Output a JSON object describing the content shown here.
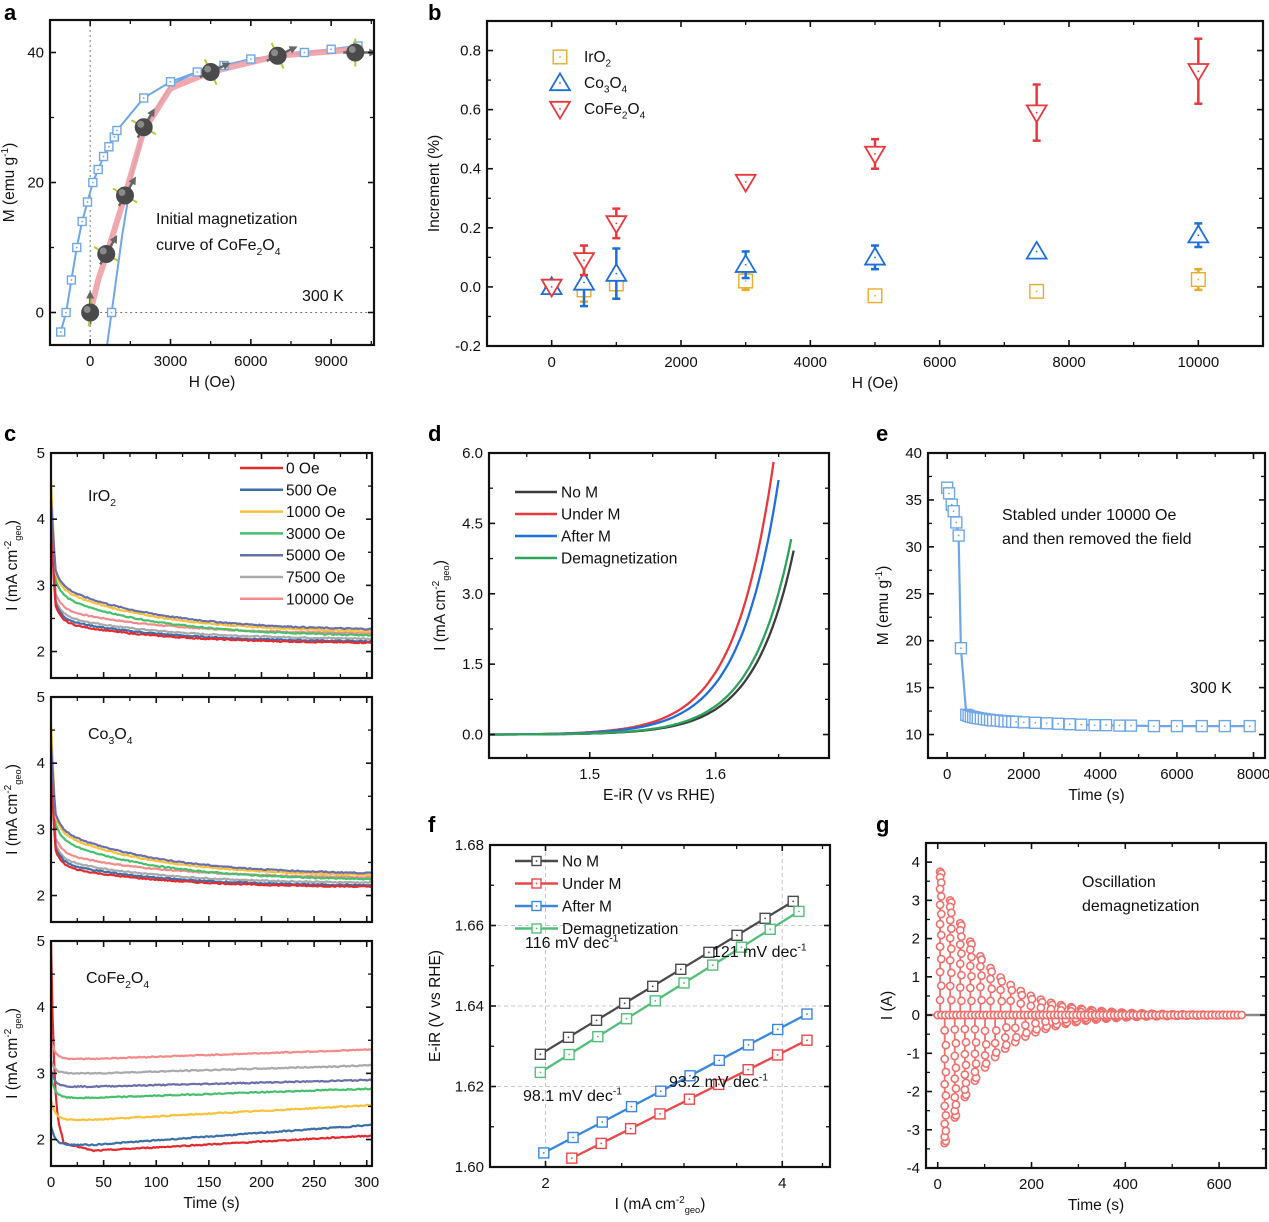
{
  "figure": {
    "panel_labels": [
      "a",
      "b",
      "c",
      "d",
      "e",
      "f",
      "g"
    ]
  },
  "chart_data": [
    {
      "id": "a",
      "type": "scatter",
      "title": "",
      "xlabel": "H (Oe)",
      "ylabel": "M (emu g⁻¹)",
      "xlim": [
        -1500,
        10600
      ],
      "ylim": [
        -5,
        45
      ],
      "xticks": [
        0,
        3000,
        6000,
        9000
      ],
      "yticks": [
        0,
        20,
        40
      ],
      "annotations": [
        "Initial magnetization",
        "curve of CoFe₂O₄",
        "300 K"
      ],
      "colors": {
        "hysteresis": "#6fa7e6",
        "initial": "#f0a0a6",
        "spin": "#5a5a5a",
        "axis_line": "#b5c93a"
      },
      "series": [
        {
          "name": "hysteresis-upper-branch",
          "marker": "open-square",
          "x": [
            -1100,
            -900,
            -700,
            -500,
            -300,
            -100,
            100,
            300,
            500,
            700,
            900,
            1000,
            2000,
            3000,
            4000,
            5000,
            6000,
            7000,
            8000,
            9000,
            10000
          ],
          "y": [
            -3,
            0,
            5,
            10,
            14,
            17,
            20,
            22,
            24,
            25.5,
            27,
            28,
            33,
            35.5,
            37,
            38,
            39,
            39.5,
            40,
            40.5,
            41
          ]
        },
        {
          "name": "hysteresis-lower-branch",
          "marker": "open-square",
          "x": [
            -1100,
            600,
            800,
            900,
            1200,
            1600,
            2000,
            3000,
            4000,
            5000,
            6000,
            7000,
            8000,
            9000,
            10000
          ],
          "y": [
            -6,
            -6,
            0,
            3,
            12,
            22,
            28,
            35,
            37,
            38,
            39,
            39.5,
            40,
            40.5,
            41
          ]
        },
        {
          "name": "initial-magnetization",
          "marker": "line",
          "x": [
            0,
            300,
            700,
            1300,
            2000,
            3000,
            4500,
            7000,
            10000
          ],
          "y": [
            0,
            5,
            10,
            18,
            28,
            34.5,
            37,
            39.5,
            40.5
          ]
        },
        {
          "name": "spin-markers",
          "marker": "sphere",
          "x": [
            0,
            600,
            1300,
            2000,
            4500,
            7000,
            9900
          ],
          "y": [
            0,
            9,
            18,
            28.5,
            37,
            39.5,
            40
          ]
        }
      ]
    },
    {
      "id": "b",
      "type": "scatter",
      "title": "",
      "xlabel": "H (Oe)",
      "ylabel": "Increment (%)",
      "xlim": [
        -1000,
        11000
      ],
      "ylim": [
        -0.2,
        0.9
      ],
      "xticks": [
        0,
        2000,
        4000,
        6000,
        8000,
        10000
      ],
      "yticks": [
        -0.2,
        0.0,
        0.2,
        0.4,
        0.6,
        0.8
      ],
      "ytick_labels": [
        "-0.2",
        "0.0",
        "0.2",
        "0.4",
        "0.6",
        "0.8"
      ],
      "legend": "top-left",
      "series": [
        {
          "name": "IrO₂",
          "color": "#e6ac2a",
          "marker": "open-square",
          "x": [
            0,
            500,
            1000,
            3000,
            5000,
            7500,
            10000
          ],
          "y": [
            0.0,
            -0.01,
            0.01,
            0.02,
            -0.03,
            -0.015,
            0.025
          ],
          "err": [
            0.01,
            0.04,
            0.05,
            0.03,
            0.02,
            0.01,
            0.035
          ]
        },
        {
          "name": "Co₃O₄",
          "color": "#1e6fd9",
          "marker": "open-triangle-up",
          "x": [
            0,
            500,
            1000,
            3000,
            5000,
            7500,
            10000
          ],
          "y": [
            0.0,
            0.015,
            0.045,
            0.075,
            0.1,
            0.12,
            0.175
          ],
          "err": [
            0.01,
            0.08,
            0.085,
            0.045,
            0.04,
            0.01,
            0.04
          ]
        },
        {
          "name": "CoFe₂O₄",
          "color": "#e8383d",
          "marker": "open-triangle-down",
          "x": [
            0,
            500,
            1000,
            3000,
            5000,
            7500,
            10000
          ],
          "y": [
            0.0,
            0.09,
            0.215,
            0.355,
            0.45,
            0.59,
            0.73
          ],
          "err": [
            0.01,
            0.05,
            0.05,
            0.01,
            0.05,
            0.095,
            0.11
          ]
        }
      ]
    },
    {
      "id": "c",
      "type": "line",
      "xlabel": "Time (s)",
      "ylabel": "I (mA cm⁻²geo)",
      "xlim": [
        0,
        305
      ],
      "ylim": [
        1.6,
        5
      ],
      "xticks": [
        0,
        50,
        100,
        150,
        200,
        250,
        300
      ],
      "yticks": [
        2,
        3,
        4,
        5
      ],
      "legend": "top-right",
      "legend_entries": [
        {
          "name": "0 Oe",
          "color": "#e32a2f"
        },
        {
          "name": "500 Oe",
          "color": "#3d6fa8"
        },
        {
          "name": "1000 Oe",
          "color": "#f7c23b"
        },
        {
          "name": "3000 Oe",
          "color": "#46c06d"
        },
        {
          "name": "5000 Oe",
          "color": "#6a6fa8"
        },
        {
          "name": "7500 Oe",
          "color": "#a9a9a9"
        },
        {
          "name": "10000 Oe",
          "color": "#f58a8a"
        }
      ],
      "subplots": [
        {
          "label": "IrO₂",
          "series": [
            {
              "name": "0 Oe",
              "start": 3.9,
              "knee": 2.45,
              "end": 2.12
            },
            {
              "name": "500 Oe",
              "start": 4.1,
              "knee": 2.5,
              "end": 2.14
            },
            {
              "name": "1000 Oe",
              "start": 4.6,
              "knee": 2.95,
              "end": 2.28
            },
            {
              "name": "3000 Oe",
              "start": 4.2,
              "knee": 2.85,
              "end": 2.22
            },
            {
              "name": "5000 Oe",
              "start": 4.3,
              "knee": 3.0,
              "end": 2.31
            },
            {
              "name": "7500 Oe",
              "start": 4.0,
              "knee": 2.55,
              "end": 2.18
            },
            {
              "name": "10000 Oe",
              "start": 4.0,
              "knee": 2.65,
              "end": 2.26
            }
          ]
        },
        {
          "label": "Co₃O₄",
          "series": [
            {
              "name": "0 Oe",
              "start": 3.9,
              "knee": 2.45,
              "end": 2.12
            },
            {
              "name": "500 Oe",
              "start": 4.1,
              "knee": 2.5,
              "end": 2.14
            },
            {
              "name": "1000 Oe",
              "start": 4.6,
              "knee": 2.95,
              "end": 2.28
            },
            {
              "name": "3000 Oe",
              "start": 4.2,
              "knee": 2.85,
              "end": 2.22
            },
            {
              "name": "5000 Oe",
              "start": 4.3,
              "knee": 3.0,
              "end": 2.31
            },
            {
              "name": "7500 Oe",
              "start": 4.0,
              "knee": 2.55,
              "end": 2.18
            },
            {
              "name": "10000 Oe",
              "start": 4.0,
              "knee": 2.65,
              "end": 2.26
            }
          ]
        },
        {
          "label": "CoFe₂O₄",
          "series": [
            {
              "name": "0 Oe",
              "start": 5.0,
              "min": 1.83,
              "end": 2.06
            },
            {
              "name": "500 Oe",
              "start": 2.2,
              "min": 1.92,
              "end": 2.22
            },
            {
              "name": "1000 Oe",
              "start": 2.6,
              "min": 2.3,
              "end": 2.52
            },
            {
              "name": "3000 Oe",
              "start": 2.95,
              "min": 2.63,
              "end": 2.77
            },
            {
              "name": "5000 Oe",
              "start": 3.05,
              "min": 2.8,
              "end": 2.9
            },
            {
              "name": "7500 Oe",
              "start": 3.2,
              "min": 3.0,
              "end": 3.12
            },
            {
              "name": "10000 Oe",
              "start": 3.5,
              "min": 3.22,
              "end": 3.36
            }
          ]
        }
      ]
    },
    {
      "id": "d",
      "type": "line",
      "xlabel": "E-iR (V vs RHE)",
      "ylabel": "I (mA cm⁻²geo)",
      "xlim": [
        1.42,
        1.69
      ],
      "ylim": [
        -0.5,
        6.0
      ],
      "xticks": [
        1.5,
        1.6
      ],
      "yticks": [
        0.0,
        1.5,
        3.0,
        4.5,
        6.0
      ],
      "ytick_labels": [
        "0.0",
        "1.5",
        "3.0",
        "4.5",
        "6.0"
      ],
      "legend": "top-left",
      "series": [
        {
          "name": "No M",
          "color": "#3c3c3c",
          "onset": 1.5,
          "x_end": 1.663,
          "y_end": 4.05
        },
        {
          "name": "Under M",
          "color": "#e6393d",
          "onset": 1.49,
          "x_end": 1.647,
          "y_end": 6.0
        },
        {
          "name": "After M",
          "color": "#1f6fd9",
          "onset": 1.49,
          "x_end": 1.651,
          "y_end": 5.6
        },
        {
          "name": "Demagnetization",
          "color": "#2ea35b",
          "onset": 1.495,
          "x_end": 1.661,
          "y_end": 4.3
        }
      ]
    },
    {
      "id": "e",
      "type": "scatter",
      "xlabel": "Time (s)",
      "ylabel": "M (emu g⁻¹)",
      "xlim": [
        -500,
        8300
      ],
      "ylim": [
        7.5,
        40
      ],
      "xticks": [
        0,
        2000,
        4000,
        6000,
        8000
      ],
      "yticks": [
        10,
        15,
        20,
        25,
        30,
        35,
        40
      ],
      "annotations": [
        "Stabled under 10000 Oe",
        "and then removed the field",
        "300 K"
      ],
      "color": "#6fa7e6",
      "series": [
        {
          "name": "M-vs-time",
          "marker": "open-square",
          "x": [
            0,
            50,
            120,
            170,
            240,
            300,
            360,
            500,
            560,
            620,
            680,
            740,
            800,
            880,
            960,
            1040,
            1120,
            1200,
            1300,
            1400,
            1500,
            1600,
            1700,
            1800,
            2000,
            2300,
            2600,
            2900,
            3200,
            3500,
            3850,
            4150,
            4500,
            4800,
            5400,
            6000,
            6650,
            7250,
            7900
          ],
          "y": [
            36.3,
            35.7,
            34.5,
            33.8,
            32.6,
            31.2,
            19.2,
            12.1,
            12.0,
            11.9,
            11.85,
            11.8,
            11.75,
            11.7,
            11.65,
            11.6,
            11.55,
            11.5,
            11.5,
            11.45,
            11.4,
            11.4,
            11.35,
            11.35,
            11.3,
            11.25,
            11.2,
            11.15,
            11.1,
            11.05,
            11.0,
            11.0,
            10.95,
            10.95,
            10.9,
            10.9,
            10.9,
            10.9,
            10.9
          ]
        }
      ]
    },
    {
      "id": "f",
      "type": "line",
      "xlabel": "I (mA cm⁻²geo)",
      "ylabel": "E-iR (V vs RHE)",
      "xscale": "log",
      "xlim": [
        1.7,
        4.6
      ],
      "ylim": [
        1.6,
        1.68
      ],
      "xticks": [
        2,
        4
      ],
      "yticks": [
        1.6,
        1.62,
        1.64,
        1.66,
        1.68
      ],
      "ytick_labels": [
        "1.60",
        "1.62",
        "1.64",
        "1.66",
        "1.68"
      ],
      "grid": true,
      "legend": "top-left",
      "series": [
        {
          "name": "No M",
          "color": "#4a4a4a",
          "marker": "open-square",
          "tafel": "116 mV dec⁻¹",
          "label_color": "#8a8a8a",
          "x_start": 1.97,
          "x_end": 4.13,
          "y_start": 1.628,
          "y_end": 1.666,
          "points": 10
        },
        {
          "name": "Under M",
          "color": "#e8484a",
          "marker": "open-square",
          "tafel": "93.2 mV dec⁻¹",
          "label_color": "#e03a3c",
          "x_start": 2.16,
          "x_end": 4.3,
          "y_start": 1.6022,
          "y_end": 1.6315,
          "points": 9
        },
        {
          "name": "After M",
          "color": "#3a86dd",
          "marker": "open-square",
          "tafel": "98.1 mV dec⁻¹",
          "label_color": "#1f6fd9",
          "x_start": 1.99,
          "x_end": 4.3,
          "y_start": 1.6035,
          "y_end": 1.638,
          "points": 10
        },
        {
          "name": "Demagnetization",
          "color": "#52bf78",
          "marker": "open-square",
          "tafel": "121 mV dec⁻¹",
          "label_color": "#2ea35b",
          "x_start": 1.97,
          "x_end": 4.2,
          "y_start": 1.6235,
          "y_end": 1.6635,
          "points": 10
        }
      ]
    },
    {
      "id": "g",
      "type": "scatter",
      "xlabel": "Time (s)",
      "ylabel": "I (A)",
      "xlim": [
        -25,
        700
      ],
      "ylim": [
        -4,
        4.5
      ],
      "xticks": [
        0,
        200,
        400,
        600
      ],
      "yticks": [
        -4,
        -3,
        -2,
        -1,
        0,
        1,
        2,
        3,
        4
      ],
      "annotations": [
        "Oscillation",
        "demagnetization"
      ],
      "color": "#ef6f6c",
      "baseline_color": "#8a8a8a",
      "series": [
        {
          "name": "oscillation-current",
          "marker": "open-circle",
          "cycle_period_s": 21.5,
          "cycle_count": 30,
          "first_positive_peak": 3.75,
          "first_negative_peak": -3.35,
          "decay_per_cycle": 0.8,
          "t_end": 650
        }
      ]
    }
  ]
}
